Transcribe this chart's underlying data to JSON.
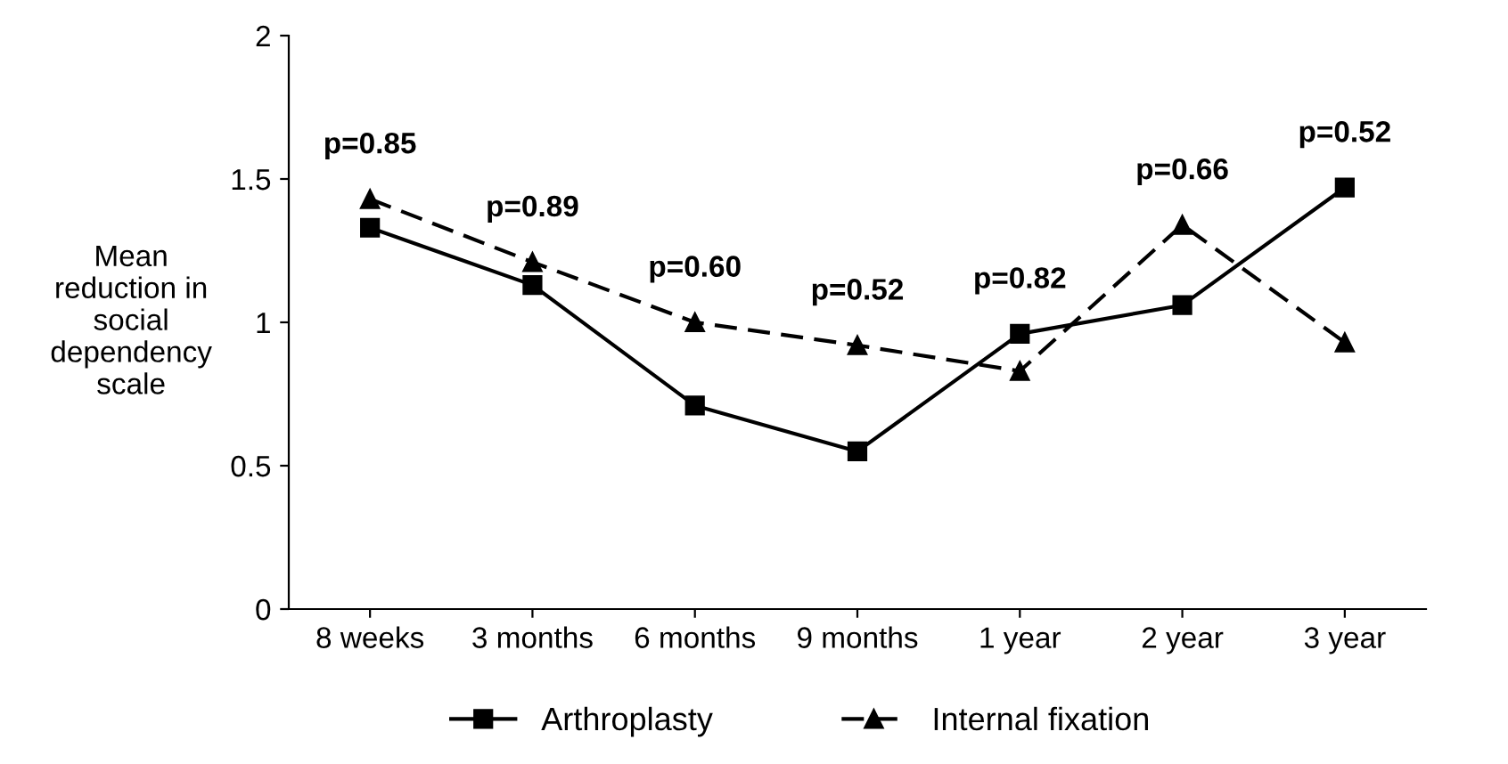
{
  "chart_data": {
    "type": "line",
    "ylabel": "Mean\nreduction in\nsocial\ndependency\nscale",
    "categories": [
      "8 weeks",
      "3 months",
      "6 months",
      "9 months",
      "1 year",
      "2 year",
      "3 year"
    ],
    "series": [
      {
        "name": "Arthroplasty",
        "color": "#000000",
        "marker": "square",
        "line_style": "solid",
        "values": [
          1.33,
          1.13,
          0.71,
          0.55,
          0.96,
          1.06,
          1.47
        ]
      },
      {
        "name": "Internal fixation",
        "color": "#000000",
        "marker": "triangle",
        "line_style": "dashed",
        "values": [
          1.43,
          1.21,
          1.0,
          0.92,
          0.83,
          1.34,
          0.93
        ]
      }
    ],
    "ylim": [
      0,
      2
    ],
    "yticks": [
      0,
      0.5,
      1,
      1.5,
      2
    ],
    "grid": false,
    "legend": "bottom",
    "annotations": [
      "p=0.85",
      "p=0.89",
      "p=0.60",
      "p=0.52",
      "p=0.82",
      "p=0.66",
      "p=0.52"
    ]
  }
}
